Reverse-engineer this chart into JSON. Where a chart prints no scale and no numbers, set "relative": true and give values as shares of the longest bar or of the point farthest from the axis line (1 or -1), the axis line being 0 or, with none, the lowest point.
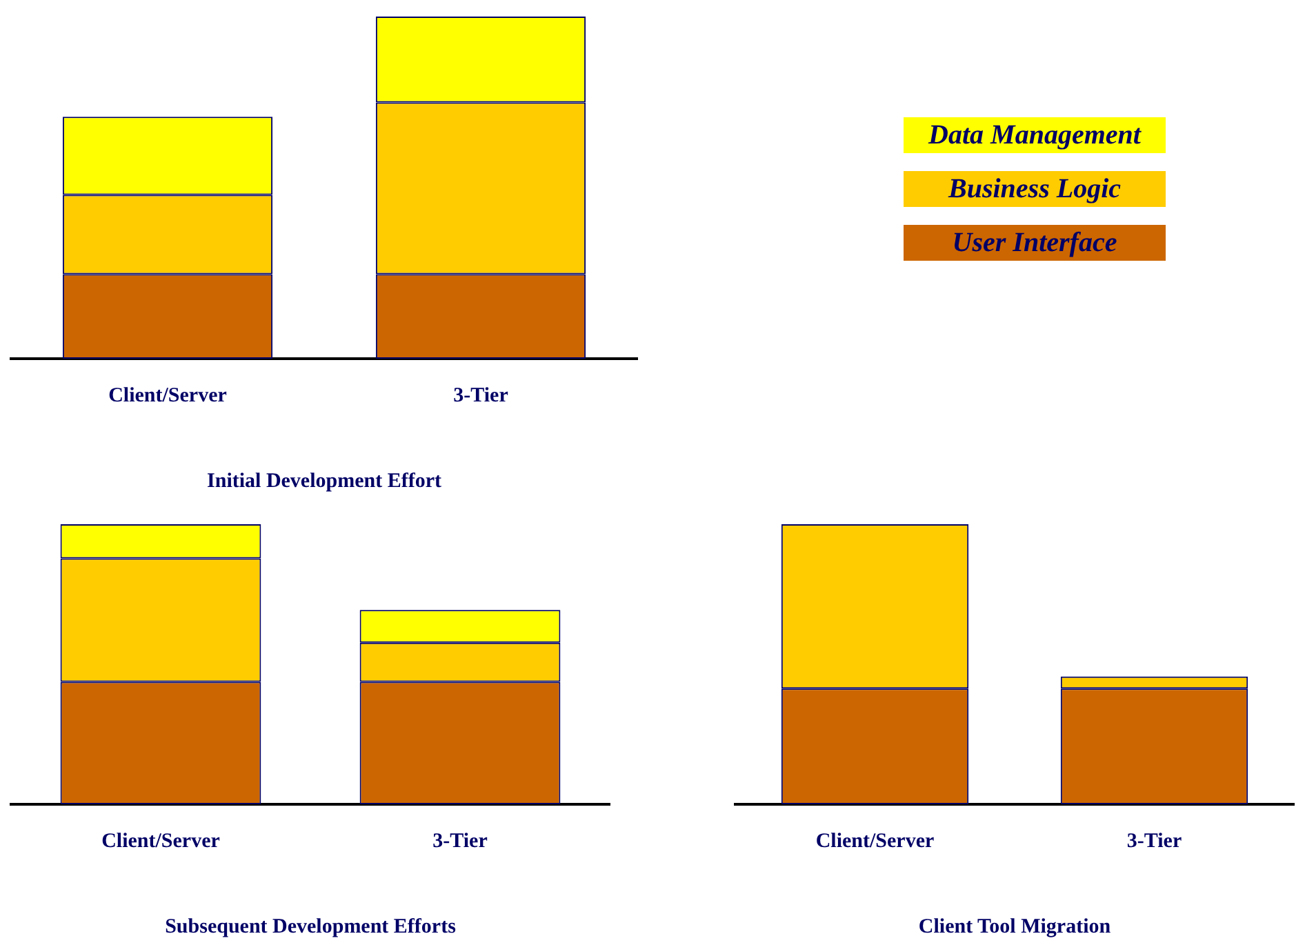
{
  "chart_data": [
    {
      "type": "bar",
      "title": "Initial Development Effort",
      "stacked": true,
      "relative": true,
      "grid": false,
      "legend": "right",
      "categories": [
        "Client/Server",
        "3-Tier"
      ],
      "series": [
        {
          "name": "User Interface",
          "color": "#cc6600",
          "values": [
            0.247,
            0.247
          ]
        },
        {
          "name": "Business Logic",
          "color": "#ffcc00",
          "values": [
            0.232,
            0.502
          ]
        },
        {
          "name": "Data Management",
          "color": "#ffff00",
          "values": [
            0.228,
            0.251
          ]
        }
      ]
    },
    {
      "type": "bar",
      "title": "Subsequent Development Efforts",
      "stacked": true,
      "relative": true,
      "grid": false,
      "categories": [
        "Client/Server",
        "3-Tier"
      ],
      "series": [
        {
          "color": "#cc6600",
          "values": [
            0.437,
            0.437
          ]
        },
        {
          "color": "#ffcc00",
          "values": [
            0.441,
            0.14
          ]
        },
        {
          "color": "#ffff00",
          "values": [
            0.122,
            0.117
          ]
        }
      ]
    },
    {
      "type": "bar",
      "title": "Client Tool Migration",
      "stacked": true,
      "relative": true,
      "grid": false,
      "categories": [
        "Client/Server",
        "3-Tier"
      ],
      "series": [
        {
          "color": "#cc6600",
          "values": [
            0.413,
            0.413
          ]
        },
        {
          "color": "#ffcc00",
          "values": [
            0.587,
            0.043
          ]
        }
      ]
    }
  ]
}
